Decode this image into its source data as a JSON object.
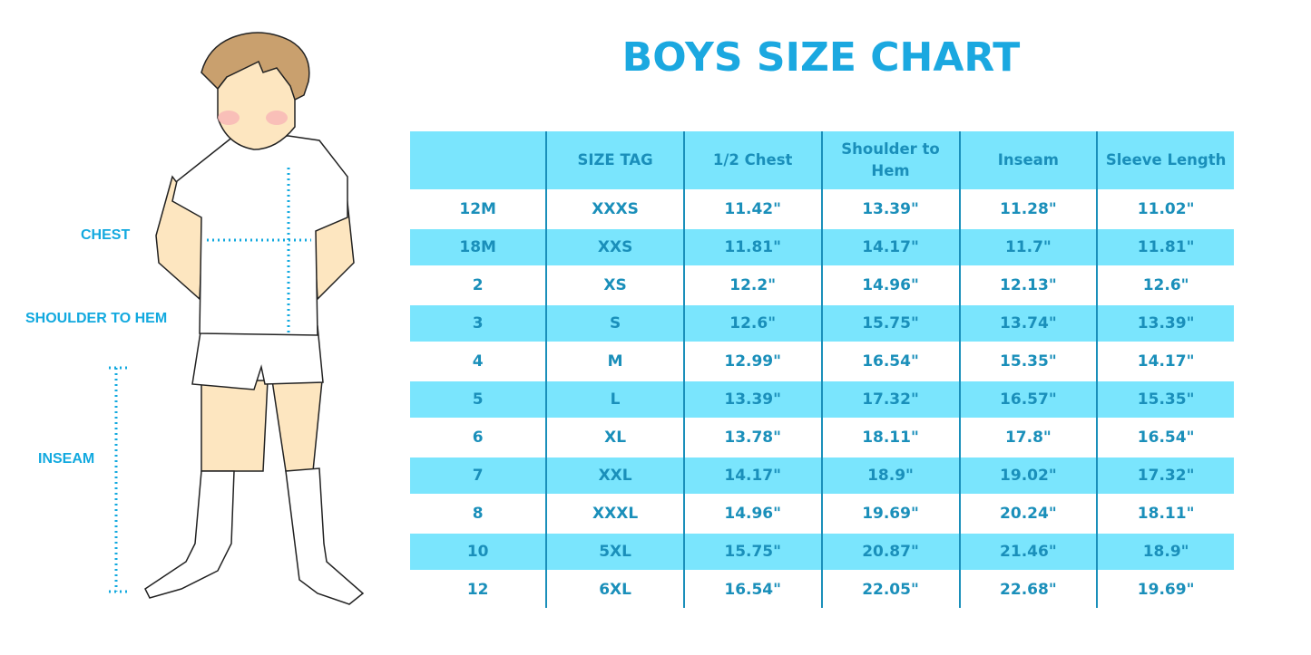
{
  "title": "BOYS SIZE CHART",
  "colors": {
    "title": "#1ba8e0",
    "band": "#7ae5fd",
    "text": "#1a8fba",
    "label": "#12a9df"
  },
  "illustration": {
    "labels": {
      "chest": "CHEST",
      "shoulder_to_hem": "SHOULDER TO HEM",
      "inseam": "INSEAM"
    }
  },
  "chart_data": {
    "type": "table",
    "title": "BOYS SIZE CHART",
    "columns": [
      "",
      "SIZE TAG",
      "1/2 Chest",
      "Shoulder to Hem",
      "Inseam",
      "Sleeve Length"
    ],
    "rows": [
      [
        "12M",
        "XXXS",
        "11.42\"",
        "13.39\"",
        "11.28\"",
        "11.02\""
      ],
      [
        "18M",
        "XXS",
        "11.81\"",
        "14.17\"",
        "11.7\"",
        "11.81\""
      ],
      [
        "2",
        "XS",
        "12.2\"",
        "14.96\"",
        "12.13\"",
        "12.6\""
      ],
      [
        "3",
        "S",
        "12.6\"",
        "15.75\"",
        "13.74\"",
        "13.39\""
      ],
      [
        "4",
        "M",
        "12.99\"",
        "16.54\"",
        "15.35\"",
        "14.17\""
      ],
      [
        "5",
        "L",
        "13.39\"",
        "17.32\"",
        "16.57\"",
        "15.35\""
      ],
      [
        "6",
        "XL",
        "13.78\"",
        "18.11\"",
        "17.8\"",
        "16.54\""
      ],
      [
        "7",
        "XXL",
        "14.17\"",
        "18.9\"",
        "19.02\"",
        "17.32\""
      ],
      [
        "8",
        "XXXL",
        "14.96\"",
        "19.69\"",
        "20.24\"",
        "18.11\""
      ],
      [
        "10",
        "5XL",
        "15.75\"",
        "20.87\"",
        "21.46\"",
        "18.9\""
      ],
      [
        "12",
        "6XL",
        "16.54\"",
        "22.05\"",
        "22.68\"",
        "19.69\""
      ]
    ]
  }
}
